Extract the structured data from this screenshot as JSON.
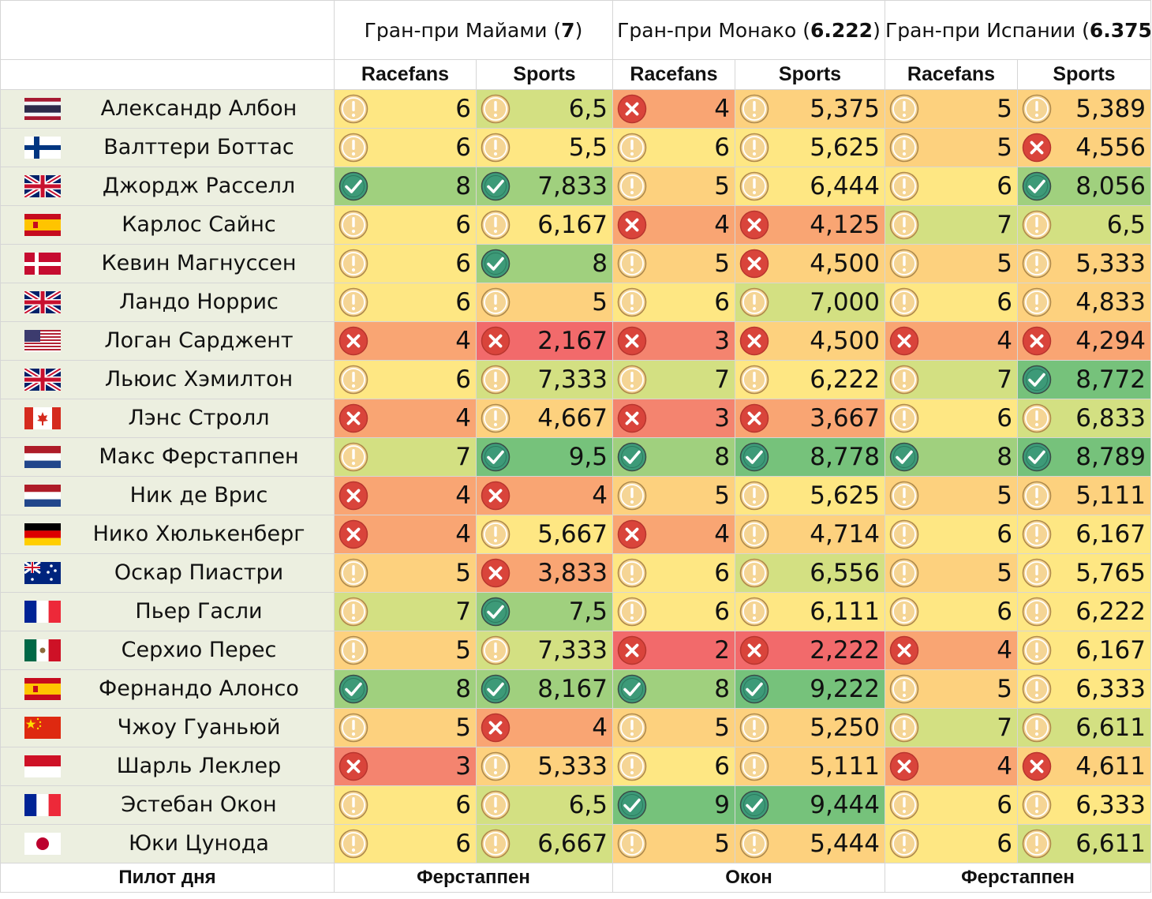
{
  "races": [
    {
      "name": "Гран-при Майами",
      "avg": "7",
      "pilot_of_day": "Ферстаппен"
    },
    {
      "name": "Гран-при Монако",
      "avg": "6.222",
      "pilot_of_day": "Окон"
    },
    {
      "name": "Гран-при Испании",
      "avg": "6.375",
      "pilot_of_day": "Ферстаппен"
    }
  ],
  "sources": [
    "Racefans",
    "Sports"
  ],
  "footer_label": "Пилот дня",
  "rating_colors": {
    "2": "#f26a6b",
    "3": "#f4846f",
    "4": "#f9a573",
    "5": "#fdd17e",
    "6": "#fee783",
    "7": "#d3e082",
    "8": "#a0d07e",
    "9": "#76c27b"
  },
  "status_icons": {
    "good": "check-icon",
    "ok": "exclamation-icon",
    "bad": "cross-icon"
  },
  "pilots": [
    {
      "name": "Александр Албон",
      "flag": "thailand",
      "scores": [
        "6",
        "6,5",
        "4",
        "5,375",
        "5",
        "5,389"
      ],
      "icons": [
        "ok",
        "ok",
        "bad",
        "ok",
        "ok",
        "ok"
      ]
    },
    {
      "name": "Валттери Боттас",
      "flag": "finland",
      "scores": [
        "6",
        "5,5",
        "6",
        "5,625",
        "5",
        "4,556"
      ],
      "icons": [
        "ok",
        "ok",
        "ok",
        "ok",
        "ok",
        "bad"
      ]
    },
    {
      "name": "Джордж Расселл",
      "flag": "uk",
      "scores": [
        "8",
        "7,833",
        "5",
        "6,444",
        "6",
        "8,056"
      ],
      "icons": [
        "good",
        "good",
        "ok",
        "ok",
        "ok",
        "good"
      ]
    },
    {
      "name": "Карлос Сайнс",
      "flag": "spain",
      "scores": [
        "6",
        "6,167",
        "4",
        "4,125",
        "7",
        "6,5"
      ],
      "icons": [
        "ok",
        "ok",
        "bad",
        "bad",
        "ok",
        "ok"
      ]
    },
    {
      "name": "Кевин Магнуссен",
      "flag": "denmark",
      "scores": [
        "6",
        "8",
        "5",
        "4,500",
        "5",
        "5,333"
      ],
      "icons": [
        "ok",
        "good",
        "ok",
        "bad",
        "ok",
        "ok"
      ]
    },
    {
      "name": "Ландо Норрис",
      "flag": "uk",
      "scores": [
        "6",
        "5",
        "6",
        "7,000",
        "6",
        "4,833"
      ],
      "icons": [
        "ok",
        "ok",
        "ok",
        "ok",
        "ok",
        "ok"
      ]
    },
    {
      "name": "Логан Сарджент",
      "flag": "usa",
      "scores": [
        "4",
        "2,167",
        "3",
        "4,500",
        "4",
        "4,294"
      ],
      "icons": [
        "bad",
        "bad",
        "bad",
        "bad",
        "bad",
        "bad"
      ]
    },
    {
      "name": "Льюис Хэмилтон",
      "flag": "uk",
      "scores": [
        "6",
        "7,333",
        "7",
        "6,222",
        "7",
        "8,772"
      ],
      "icons": [
        "ok",
        "ok",
        "ok",
        "ok",
        "ok",
        "good"
      ]
    },
    {
      "name": "Лэнс Стролл",
      "flag": "canada",
      "scores": [
        "4",
        "4,667",
        "3",
        "3,667",
        "6",
        "6,833"
      ],
      "icons": [
        "bad",
        "ok",
        "bad",
        "bad",
        "ok",
        "ok"
      ]
    },
    {
      "name": "Макс Ферстаппен",
      "flag": "netherlands",
      "scores": [
        "7",
        "9,5",
        "8",
        "8,778",
        "8",
        "8,789"
      ],
      "icons": [
        "ok",
        "good",
        "good",
        "good",
        "good",
        "good"
      ]
    },
    {
      "name": "Ник де Врис",
      "flag": "netherlands",
      "scores": [
        "4",
        "4",
        "5",
        "5,625",
        "5",
        "5,111"
      ],
      "icons": [
        "bad",
        "bad",
        "ok",
        "ok",
        "ok",
        "ok"
      ]
    },
    {
      "name": "Нико Хюлькенберг",
      "flag": "germany",
      "scores": [
        "4",
        "5,667",
        "4",
        "4,714",
        "6",
        "6,167"
      ],
      "icons": [
        "bad",
        "ok",
        "bad",
        "ok",
        "ok",
        "ok"
      ]
    },
    {
      "name": "Оскар Пиастри",
      "flag": "australia",
      "scores": [
        "5",
        "3,833",
        "6",
        "6,556",
        "5",
        "5,765"
      ],
      "icons": [
        "ok",
        "bad",
        "ok",
        "ok",
        "ok",
        "ok"
      ]
    },
    {
      "name": "Пьер Гасли",
      "flag": "france",
      "scores": [
        "7",
        "7,5",
        "6",
        "6,111",
        "6",
        "6,222"
      ],
      "icons": [
        "ok",
        "good",
        "ok",
        "ok",
        "ok",
        "ok"
      ]
    },
    {
      "name": "Серхио Перес",
      "flag": "mexico",
      "scores": [
        "5",
        "7,333",
        "2",
        "2,222",
        "4",
        "6,167"
      ],
      "icons": [
        "ok",
        "ok",
        "bad",
        "bad",
        "bad",
        "ok"
      ]
    },
    {
      "name": "Фернандо Алонсо",
      "flag": "spain",
      "scores": [
        "8",
        "8,167",
        "8",
        "9,222",
        "5",
        "6,333"
      ],
      "icons": [
        "good",
        "good",
        "good",
        "good",
        "ok",
        "ok"
      ]
    },
    {
      "name": "Чжоу Гуаньюй",
      "flag": "china",
      "scores": [
        "5",
        "4",
        "5",
        "5,250",
        "7",
        "6,611"
      ],
      "icons": [
        "ok",
        "bad",
        "ok",
        "ok",
        "ok",
        "ok"
      ]
    },
    {
      "name": "Шарль Леклер",
      "flag": "monaco",
      "scores": [
        "3",
        "5,333",
        "6",
        "5,111",
        "4",
        "4,611"
      ],
      "icons": [
        "bad",
        "ok",
        "ok",
        "ok",
        "bad",
        "bad"
      ]
    },
    {
      "name": "Эстебан Окон",
      "flag": "france",
      "scores": [
        "6",
        "6,5",
        "9",
        "9,444",
        "6",
        "6,333"
      ],
      "icons": [
        "ok",
        "ok",
        "good",
        "good",
        "ok",
        "ok"
      ]
    },
    {
      "name": "Юки Цунода",
      "flag": "japan",
      "scores": [
        "6",
        "6,667",
        "5",
        "5,444",
        "6",
        "6,611"
      ],
      "icons": [
        "ok",
        "ok",
        "ok",
        "ok",
        "ok",
        "ok"
      ]
    }
  ]
}
